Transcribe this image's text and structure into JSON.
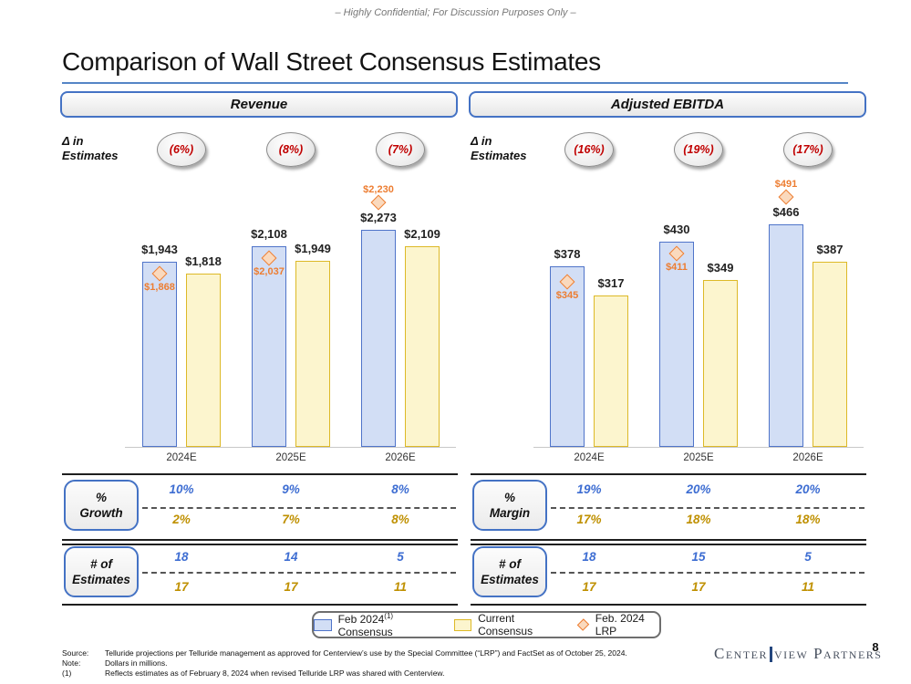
{
  "colors": {
    "accent_blue": "#4472C4",
    "bar_blue_fill": "#D2DEF5",
    "bar_blue_border": "#4F74C9",
    "bar_yellow_fill": "#FCF5CE",
    "bar_yellow_border": "#DDB927",
    "diamond_fill": "#FAD9BD",
    "diamond_border": "#ED7D31",
    "red_text": "#C00000",
    "gold_text": "#BF9000",
    "blue_text": "#3D6DD2"
  },
  "header": {
    "confidential": "– Highly Confidential; For Discussion Purposes Only –",
    "title": "Comparison of Wall Street Consensus Estimates"
  },
  "legend": {
    "items": [
      {
        "swatch": "blue-rect",
        "label_prefix": "Feb 2024",
        "footnote": "(1)",
        "label_suffix": "Consensus"
      },
      {
        "swatch": "yellow-rect",
        "label": "Current Consensus"
      },
      {
        "swatch": "orange-diamond",
        "label": "Feb. 2024 LRP"
      }
    ]
  },
  "footer": {
    "source_label": "Source:",
    "source_text": "Telluride projections per Telluride management as approved for Centerview’s use by the Special Committee (“LRP”) and FactSet as of October 25, 2024.",
    "note_label": "Note:",
    "note_text": "Dollars in millions.",
    "footnote_label": "(1)",
    "footnote_text": "Reflects estimates as of February 8, 2024 when revised Telluride LRP was shared with Centerview.",
    "logo_part_1": "Center",
    "logo_part_2": "view Partners",
    "page_number": "8"
  },
  "chart_data": [
    {
      "type": "bar",
      "panel_title": "Revenue",
      "delta_label_1": "Δ in",
      "delta_label_2": "Estimates",
      "delta_in_estimates": [
        "(6%)",
        "(8%)",
        "(7%)"
      ],
      "categories": [
        "2024E",
        "2025E",
        "2026E"
      ],
      "value_prefix": "$",
      "series": [
        {
          "name": "Feb 2024 Consensus",
          "style": "blue-bar",
          "values": [
            1943,
            2108,
            2273
          ]
        },
        {
          "name": "Current Consensus",
          "style": "yellow-bar",
          "values": [
            1818,
            1949,
            2109
          ]
        },
        {
          "name": "Feb. 2024 LRP",
          "style": "orange-diamond",
          "marker": "diamond",
          "values": [
            1868,
            2037,
            2230
          ]
        }
      ],
      "ylim": [
        0,
        2350
      ],
      "stat_tables": [
        {
          "label_1": "%",
          "label_2": "Growth",
          "rows": [
            [
              "10%",
              "9%",
              "8%"
            ],
            [
              "2%",
              "7%",
              "8%"
            ]
          ]
        },
        {
          "label_1": "# of",
          "label_2": "Estimates",
          "rows": [
            [
              "18",
              "14",
              "5"
            ],
            [
              "17",
              "17",
              "11"
            ]
          ]
        }
      ]
    },
    {
      "type": "bar",
      "panel_title": "Adjusted EBITDA",
      "delta_label_1": "Δ in",
      "delta_label_2": "Estimates",
      "delta_in_estimates": [
        "(16%)",
        "(19%)",
        "(17%)"
      ],
      "categories": [
        "2024E",
        "2025E",
        "2026E"
      ],
      "value_prefix": "$",
      "series": [
        {
          "name": "Feb 2024 Consensus",
          "style": "blue-bar",
          "values": [
            378,
            430,
            466
          ]
        },
        {
          "name": "Current Consensus",
          "style": "yellow-bar",
          "values": [
            317,
            349,
            387
          ]
        },
        {
          "name": "Feb. 2024 LRP",
          "style": "orange-diamond",
          "marker": "diamond",
          "values": [
            345,
            411,
            491
          ]
        }
      ],
      "ylim": [
        0,
        500
      ],
      "stat_tables": [
        {
          "label_1": "%",
          "label_2": "Margin",
          "rows": [
            [
              "19%",
              "20%",
              "20%"
            ],
            [
              "17%",
              "18%",
              "18%"
            ]
          ]
        },
        {
          "label_1": "# of",
          "label_2": "Estimates",
          "rows": [
            [
              "18",
              "15",
              "5"
            ],
            [
              "17",
              "17",
              "11"
            ]
          ]
        }
      ]
    }
  ]
}
